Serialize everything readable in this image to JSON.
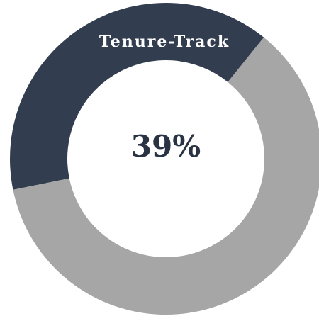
{
  "chart_data": {
    "type": "donut",
    "categories": [
      "Tenure-Track",
      null
    ],
    "values": [
      39,
      61
    ],
    "value_labels": [
      "39%",
      null
    ],
    "colors": [
      "#333d50",
      "#a6a6a6"
    ]
  }
}
